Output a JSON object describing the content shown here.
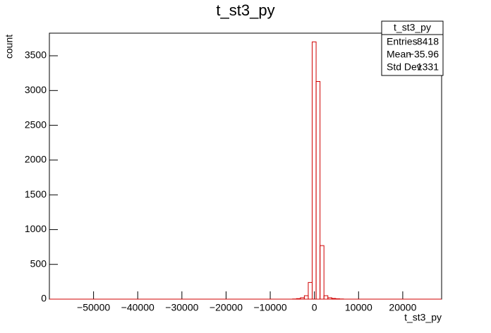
{
  "chart_data": {
    "type": "histogram",
    "title": "t_st3_py",
    "x_label": "t_st3_py",
    "y_label": "count",
    "bins": [
      -5832,
      -4944,
      -4056,
      -3168,
      -2280,
      -1392,
      -504,
      384,
      1272,
      2160,
      3048,
      3936,
      4824,
      5712,
      6600
    ],
    "values": [
      0,
      3,
      8,
      20,
      50,
      240,
      3700,
      3130,
      770,
      50,
      20,
      10,
      5,
      2
    ],
    "color": "#d00000",
    "xlim": [
      -60000,
      28800
    ],
    "ylim": [
      0,
      3825
    ],
    "xticks": [
      {
        "value": -50000,
        "label": "−50000"
      },
      {
        "value": -40000,
        "label": "−40000"
      },
      {
        "value": -30000,
        "label": "−30000"
      },
      {
        "value": -20000,
        "label": "−20000"
      },
      {
        "value": -10000,
        "label": "−10000"
      },
      0,
      10000,
      20000
    ],
    "yticks": [
      0,
      500,
      1000,
      1500,
      2000,
      2500,
      3000,
      3500
    ],
    "stats": {
      "title": "t_st3_py",
      "rows": [
        [
          "Entries",
          "8418"
        ],
        [
          "Mean",
          "−35.96"
        ],
        [
          "Std Dev",
          "1331"
        ]
      ]
    }
  }
}
